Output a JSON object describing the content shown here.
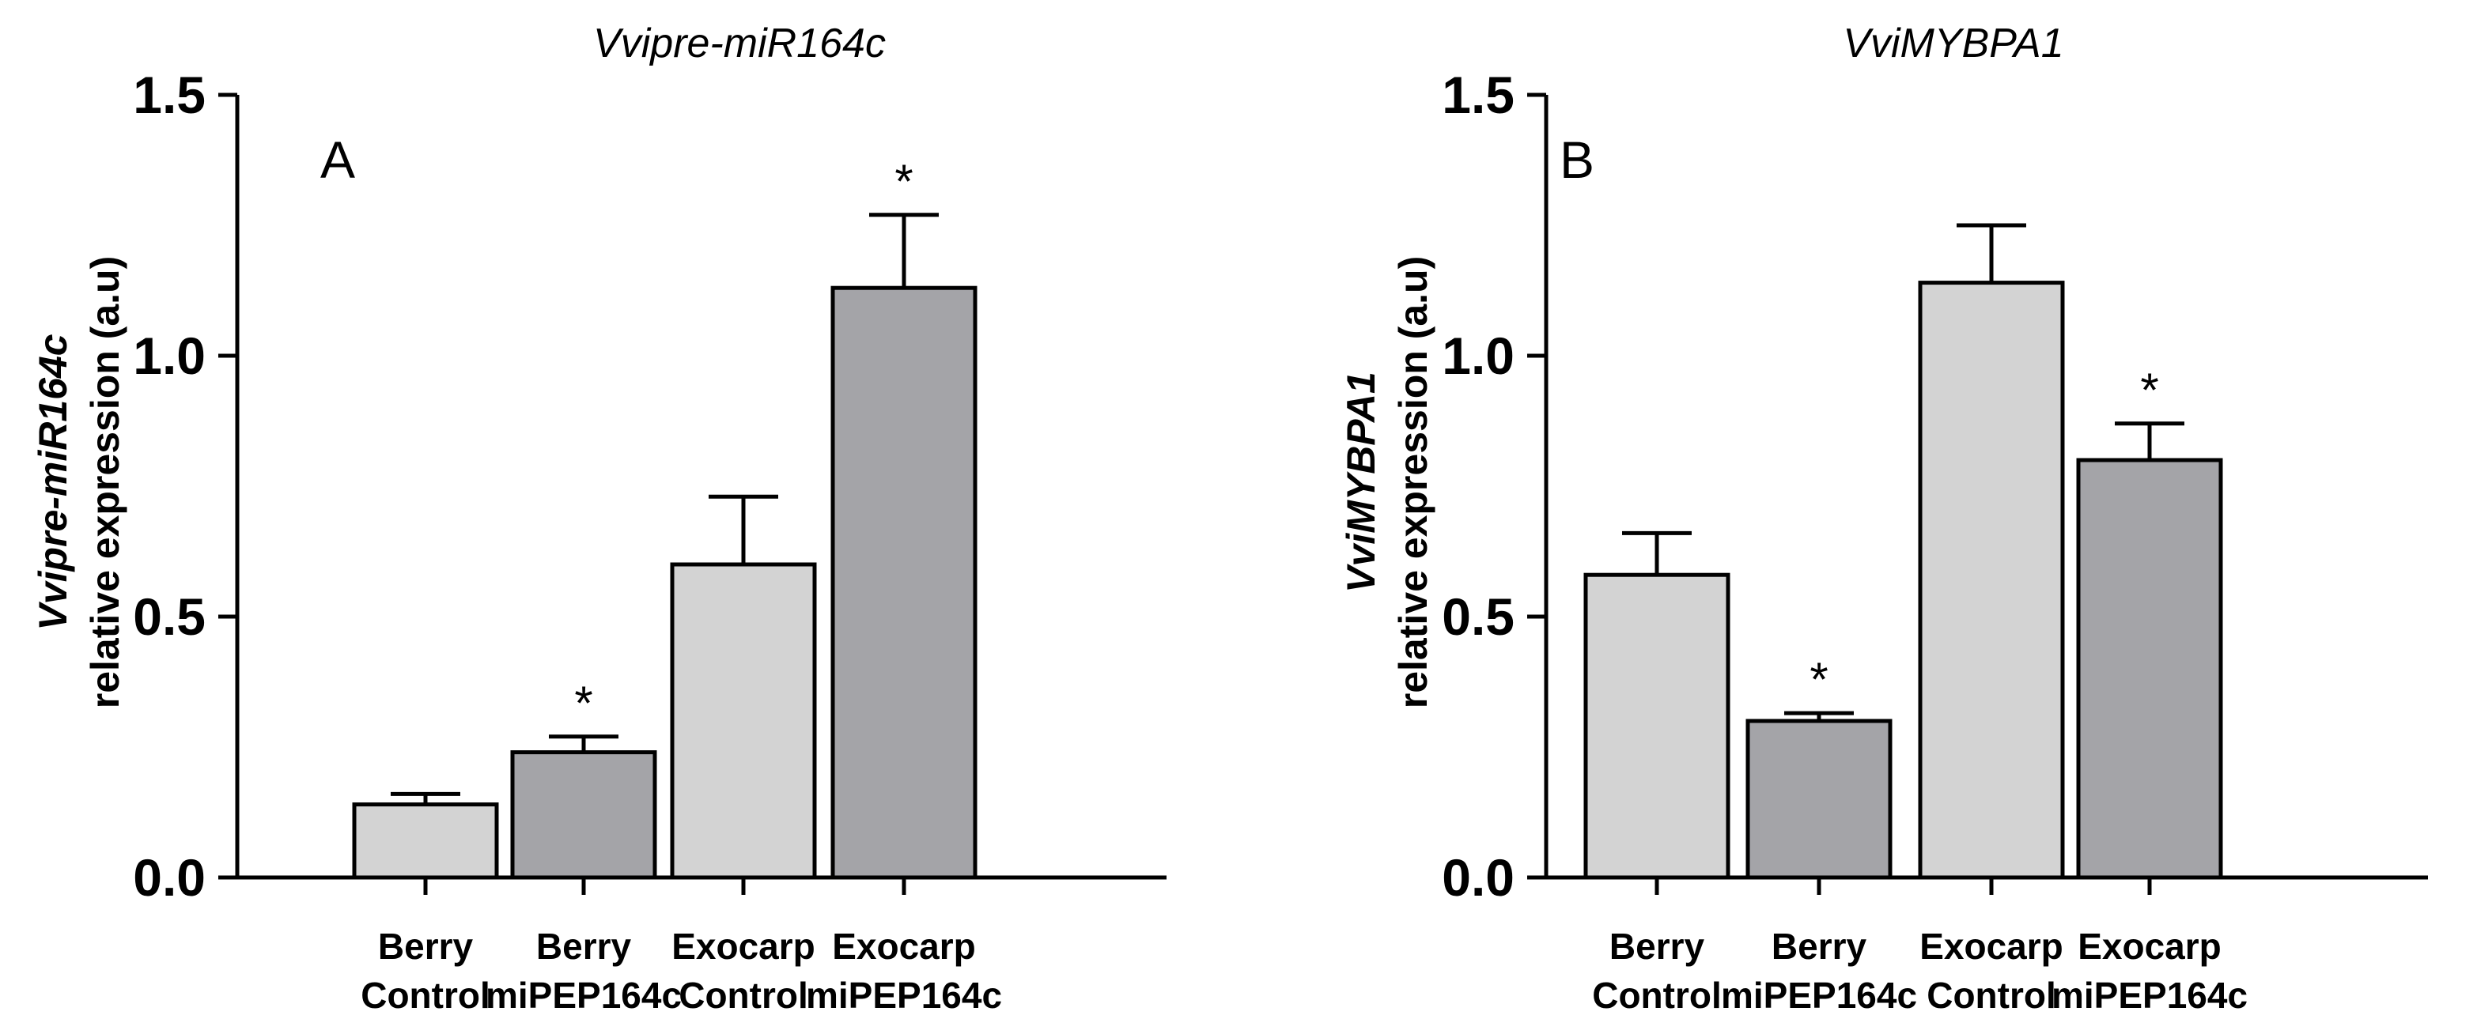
{
  "chart_data": [
    {
      "type": "bar",
      "title": "Vvipre-miR164c",
      "panel_label": "A",
      "ylabel": [
        "Vvipre-miR164c",
        "relative expression (a.u)"
      ],
      "ylim": [
        0,
        1.5
      ],
      "yticks": [
        "0.0",
        "0.5",
        "1.0",
        "1.5"
      ],
      "categories": [
        [
          "Berry",
          "Control"
        ],
        [
          "Berry",
          "miPEP164c"
        ],
        [
          "Exocarp",
          "Control"
        ],
        [
          "Exocarp",
          "miPEP164c"
        ]
      ],
      "values": [
        0.14,
        0.24,
        0.6,
        1.13
      ],
      "errors": [
        0.02,
        0.03,
        0.13,
        0.14
      ],
      "significance": [
        "",
        "*",
        "",
        "*"
      ],
      "bar_colors": [
        "#d3d3d3",
        "#a4a4a8",
        "#d3d3d3",
        "#a4a4a8"
      ]
    },
    {
      "type": "bar",
      "title": "VviMYBPA1",
      "panel_label": "B",
      "ylabel": [
        "VviMYBPA1",
        "relative expression (a.u)"
      ],
      "ylim": [
        0,
        1.5
      ],
      "yticks": [
        "0.0",
        "0.5",
        "1.0",
        "1.5"
      ],
      "categories": [
        [
          "Berry",
          "Control"
        ],
        [
          "Berry",
          "miPEP164c"
        ],
        [
          "Exocarp",
          "Control"
        ],
        [
          "Exocarp",
          "miPEP164c"
        ]
      ],
      "values": [
        0.58,
        0.3,
        1.14,
        0.8
      ],
      "errors": [
        0.08,
        0.015,
        0.11,
        0.07
      ],
      "significance": [
        "",
        "*",
        "",
        "*"
      ],
      "bar_colors": [
        "#d3d3d3",
        "#a4a4a8",
        "#d3d3d3",
        "#a4a4a8"
      ]
    }
  ]
}
